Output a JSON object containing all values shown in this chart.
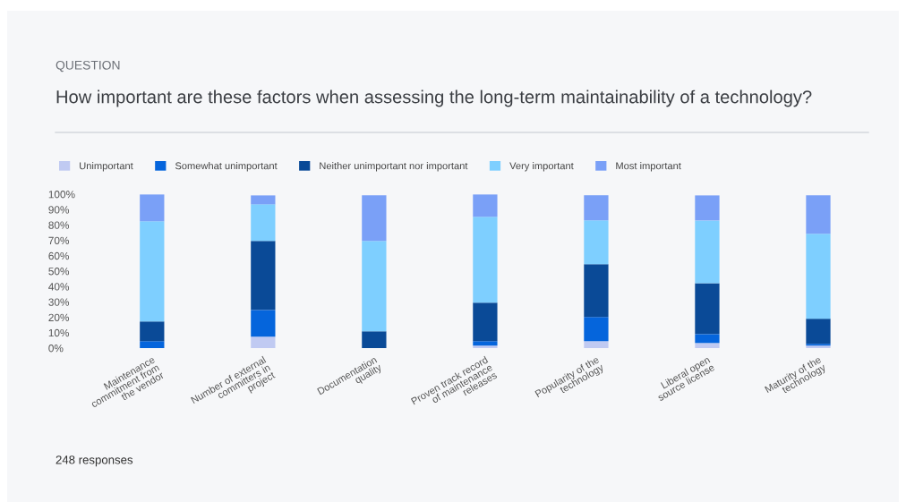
{
  "chart_data": {
    "type": "bar",
    "stacked": true,
    "subtitle": "QUESTION",
    "title": "How important are these factors when assessing the long-term maintainability of a technology?",
    "categories": [
      "Maintenance\ncommitment from\nthe vendor",
      "Number of external\ncommitters in\nproject",
      "Documentation\nquality",
      "Proven track record\nof maintenance\nreleases",
      "Popularity of the\ntechnology",
      "Liberal open\nsource license",
      "Maturity of the\ntechnology"
    ],
    "series": [
      {
        "name": "Unimportant",
        "color": "#c0caf2",
        "values": [
          0,
          7.4,
          0,
          1.6,
          4.5,
          3.3,
          1.6
        ]
      },
      {
        "name": "Somewhat unimportant",
        "color": "#0565dc",
        "values": [
          4.5,
          17.4,
          0,
          2.9,
          15.7,
          5.8,
          1.2
        ]
      },
      {
        "name": "Neither unimportant nor important",
        "color": "#0a4a97",
        "values": [
          12.8,
          44.8,
          10.9,
          25.0,
          34.3,
          33.1,
          16.3
        ]
      },
      {
        "name": "Very important",
        "color": "#7ecfff",
        "values": [
          65.1,
          23.8,
          58.7,
          55.8,
          28.5,
          40.7,
          55.2
        ]
      },
      {
        "name": "Most important",
        "color": "#7aa0f7",
        "values": [
          17.4,
          5.8,
          29.7,
          14.5,
          16.3,
          16.3,
          25.0
        ]
      }
    ],
    "ylim": [
      0,
      100
    ],
    "yticks": [
      {
        "value": 0,
        "label": "0%"
      },
      {
        "value": 10,
        "label": "10%"
      },
      {
        "value": 20,
        "label": "20%"
      },
      {
        "value": 30,
        "label": "30%"
      },
      {
        "value": 40,
        "label": "40%"
      },
      {
        "value": 50,
        "label": "50%"
      },
      {
        "value": 60,
        "label": "60%"
      },
      {
        "value": 70,
        "label": "70%"
      },
      {
        "value": 80,
        "label": "80%"
      },
      {
        "value": 90,
        "label": "90%"
      },
      {
        "value": 100,
        "label": "100%"
      }
    ],
    "grid": false,
    "legend": "top left",
    "annotations": [
      "248 responses"
    ]
  }
}
